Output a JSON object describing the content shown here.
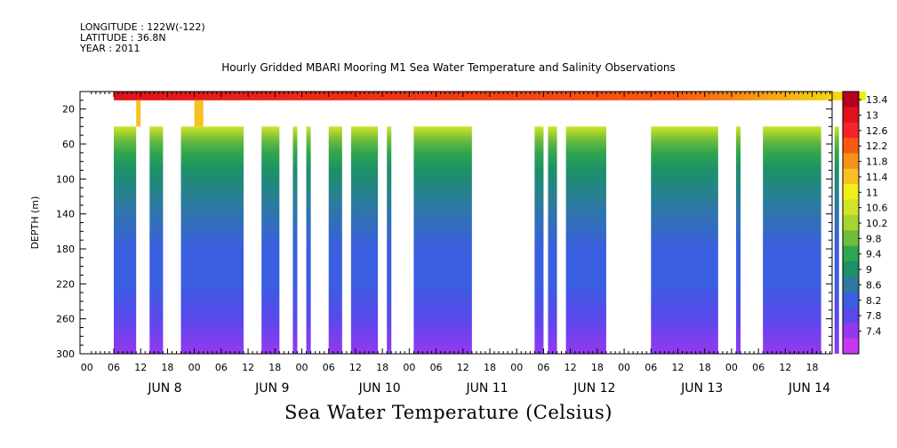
{
  "header": {
    "longitude": "LONGITUDE : 122W(-122)",
    "latitude": "LATITUDE : 36.8N",
    "year": "YEAR : 2011"
  },
  "chart_data": {
    "type": "heatmap",
    "title": "Hourly Gridded MBARI Mooring M1 Sea Water Temperature and Salinity Observations",
    "caption": "Sea Water Temperature (Celsius)",
    "ylabel": "DEPTH (m)",
    "y_ticks": [
      20,
      60,
      100,
      140,
      180,
      220,
      260,
      300
    ],
    "ylim": [
      300,
      0
    ],
    "y_reversed": true,
    "xlim_hours": [
      0,
      168
    ],
    "x_ticks": [
      "00",
      "06",
      "12",
      "18",
      "00",
      "06",
      "12",
      "18",
      "00",
      "06",
      "12",
      "18",
      "00",
      "06",
      "12",
      "18",
      "00",
      "06",
      "12",
      "18",
      "00",
      "06",
      "12",
      "18",
      "00",
      "06",
      "12",
      "18"
    ],
    "x_dates": [
      "JUN 8",
      "JUN 9",
      "JUN 10",
      "JUN 11",
      "JUN 12",
      "JUN 13",
      "JUN 14"
    ],
    "colorbar": {
      "levels": [
        13.4,
        13,
        12.6,
        12.2,
        11.8,
        11.4,
        11,
        10.6,
        10.2,
        9.8,
        9.4,
        9,
        8.6,
        8.2,
        7.8,
        7.4
      ],
      "colors": [
        "#b8001e",
        "#e0101c",
        "#f8222a",
        "#f85a12",
        "#f8901a",
        "#f8c020",
        "#f0f018",
        "#d0e428",
        "#a8d430",
        "#70bc3c",
        "#30a64e",
        "#1c9068",
        "#2c7aa0",
        "#3a5ee0",
        "#5a48ec",
        "#9438f0",
        "#c838f4"
      ],
      "label_levels": [
        13.4,
        13,
        12.6,
        12.2,
        11.8,
        11.4,
        11,
        10.6,
        10.2,
        9.8,
        9.4,
        9,
        8.6,
        8.2,
        7.8,
        7.4
      ]
    },
    "surface_layer": {
      "depth_range": [
        0,
        10
      ],
      "hours": [
        0,
        168
      ],
      "temperature_start": 13.0,
      "temperature_end": 11.2
    },
    "deep_columns": {
      "depth_range": [
        40,
        300
      ],
      "hour_intervals": [
        [
          0,
          5
        ],
        [
          8,
          11
        ],
        [
          15,
          29
        ],
        [
          33,
          37
        ],
        [
          40,
          41
        ],
        [
          43,
          44
        ],
        [
          48,
          51
        ],
        [
          53,
          59
        ],
        [
          61,
          62
        ],
        [
          67,
          80
        ],
        [
          94,
          96
        ],
        [
          97,
          99
        ],
        [
          101,
          110
        ],
        [
          120,
          135
        ],
        [
          139,
          140
        ],
        [
          145,
          158
        ],
        [
          161,
          162
        ]
      ],
      "profile": [
        {
          "depth": 40,
          "temperature": 10.6
        },
        {
          "depth": 55,
          "temperature": 10.0
        },
        {
          "depth": 70,
          "temperature": 9.5
        },
        {
          "depth": 90,
          "temperature": 9.0
        },
        {
          "depth": 130,
          "temperature": 8.7
        },
        {
          "depth": 180,
          "temperature": 8.5
        },
        {
          "depth": 220,
          "temperature": 8.3
        },
        {
          "depth": 260,
          "temperature": 8.0
        },
        {
          "depth": 300,
          "temperature": 7.6
        }
      ]
    },
    "intermediate_spikes": [
      {
        "hours": [
          5,
          6
        ],
        "depth_range": [
          10,
          40
        ],
        "temperature": 11.4
      },
      {
        "hours": [
          18,
          20
        ],
        "depth_range": [
          10,
          40
        ],
        "temperature": 11.4
      }
    ]
  }
}
